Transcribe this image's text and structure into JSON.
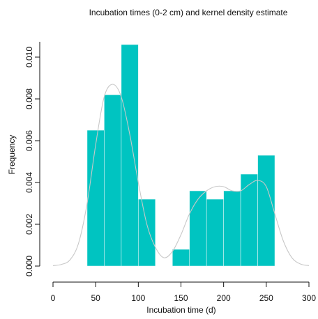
{
  "chart_data": {
    "type": "bar",
    "title": "Incubation times (0-2 cm) and kernel density estimate",
    "xlabel": "Incubation time (d)",
    "ylabel": "Frequency",
    "xlim": [
      0,
      300
    ],
    "ylim": [
      0,
      0.0105
    ],
    "xticks": [
      0,
      50,
      100,
      150,
      200,
      250,
      300
    ],
    "yticks": [
      0.0,
      0.002,
      0.004,
      0.006,
      0.008,
      0.01
    ],
    "ytick_labels": [
      "0.000",
      "0.002",
      "0.004",
      "0.006",
      "0.008",
      "0.010"
    ],
    "grid": false,
    "bar_color": "#00c4c1",
    "line_color": "#c8c8c8",
    "bins": [
      {
        "x0": 40,
        "x1": 60,
        "value": 0.0065
      },
      {
        "x0": 60,
        "x1": 80,
        "value": 0.0082
      },
      {
        "x0": 80,
        "x1": 100,
        "value": 0.0106
      },
      {
        "x0": 100,
        "x1": 120,
        "value": 0.0032
      },
      {
        "x0": 120,
        "x1": 140,
        "value": 0.0
      },
      {
        "x0": 140,
        "x1": 160,
        "value": 0.0008
      },
      {
        "x0": 160,
        "x1": 180,
        "value": 0.0036
      },
      {
        "x0": 180,
        "x1": 200,
        "value": 0.0032
      },
      {
        "x0": 200,
        "x1": 220,
        "value": 0.0036
      },
      {
        "x0": 220,
        "x1": 240,
        "value": 0.0044
      },
      {
        "x0": 240,
        "x1": 260,
        "value": 0.0053
      }
    ],
    "kde": {
      "x": [
        0,
        10,
        20,
        30,
        40,
        50,
        60,
        70,
        80,
        90,
        100,
        110,
        120,
        130,
        140,
        150,
        160,
        170,
        180,
        190,
        200,
        210,
        220,
        230,
        240,
        250,
        260,
        270,
        280,
        290,
        300
      ],
      "y": [
        2e-05,
        8e-05,
        0.0003,
        0.0011,
        0.003,
        0.0058,
        0.0081,
        0.0087,
        0.0081,
        0.0063,
        0.004,
        0.002,
        0.0009,
        0.0004,
        0.0007,
        0.0015,
        0.0025,
        0.0032,
        0.0036,
        0.0038,
        0.0038,
        0.0036,
        0.0036,
        0.0039,
        0.0041,
        0.0038,
        0.0025,
        0.0012,
        0.0004,
        0.0001,
        2e-05
      ]
    }
  }
}
